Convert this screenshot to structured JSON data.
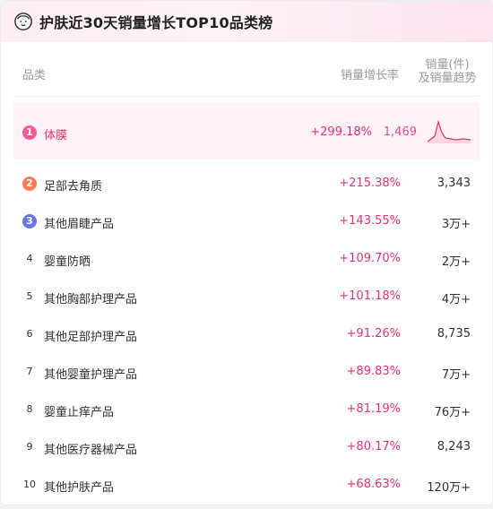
{
  "header": {
    "title": "护肤近30天销量增长TOP10品类榜",
    "logo_icon": "face-outline-icon"
  },
  "columns": {
    "category": "品类",
    "growth_rate": "销量增长率",
    "sales_line1": "销量(件)",
    "sales_line2": "及销量趋势"
  },
  "colors": {
    "accent": "#e8336d",
    "rank1": "#f55c96",
    "rank2": "#f47d55",
    "rank3": "#6a74e6"
  },
  "rows": [
    {
      "rank": "1",
      "name": "体膜",
      "rate": "+299.18%",
      "sales": "1,469"
    },
    {
      "rank": "2",
      "name": "足部去角质",
      "rate": "+215.38%",
      "sales": "3,343"
    },
    {
      "rank": "3",
      "name": "其他眉睫产品",
      "rate": "+143.55%",
      "sales": "3万+"
    },
    {
      "rank": "4",
      "name": "婴童防晒",
      "rate": "+109.70%",
      "sales": "2万+"
    },
    {
      "rank": "5",
      "name": "其他胸部护理产品",
      "rate": "+101.18%",
      "sales": "4万+"
    },
    {
      "rank": "6",
      "name": "其他足部护理产品",
      "rate": "+91.26%",
      "sales": "8,735"
    },
    {
      "rank": "7",
      "name": "其他婴童护理产品",
      "rate": "+89.83%",
      "sales": "7万+"
    },
    {
      "rank": "8",
      "name": "婴童止痒产品",
      "rate": "+81.19%",
      "sales": "76万+"
    },
    {
      "rank": "9",
      "name": "其他医疗器械产品",
      "rate": "+80.17%",
      "sales": "8,243"
    },
    {
      "rank": "10",
      "name": "其他护肤产品",
      "rate": "+68.63%",
      "sales": "120万+"
    }
  ]
}
